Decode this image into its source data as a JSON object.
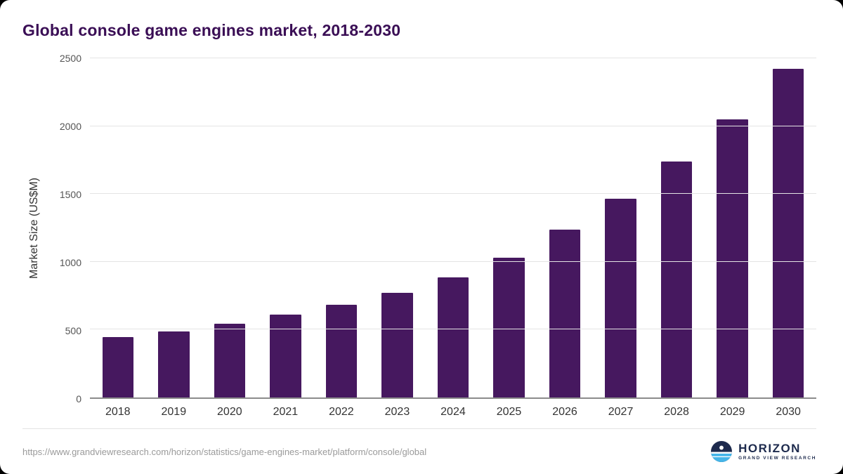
{
  "chart_data": {
    "type": "bar",
    "title": "Global console game engines market, 2018-2030",
    "ylabel": "Market Size (US$M)",
    "xlabel": "",
    "categories": [
      "2018",
      "2019",
      "2020",
      "2021",
      "2022",
      "2023",
      "2024",
      "2025",
      "2026",
      "2027",
      "2028",
      "2029",
      "2030"
    ],
    "values": [
      445,
      488,
      545,
      610,
      685,
      770,
      885,
      1030,
      1235,
      1465,
      1740,
      2050,
      2420
    ],
    "ylim": [
      0,
      2500
    ],
    "yticks": [
      0,
      500,
      1000,
      1500,
      2000,
      2500
    ],
    "grid": true,
    "legend": false,
    "bar_color": "#46185f"
  },
  "footer": {
    "source_url": "https://www.grandviewresearch.com/horizon/statistics/game-engines-market/platform/console/global",
    "logo_title": "HORIZON",
    "logo_subtitle": "GRAND VIEW RESEARCH"
  },
  "colors": {
    "title": "#3a0e55",
    "bar": "#46185f",
    "axis_text": "#333333",
    "grid_line": "#e4e4e4",
    "logo_navy": "#1d2a4d",
    "logo_blue": "#45b5e8"
  }
}
